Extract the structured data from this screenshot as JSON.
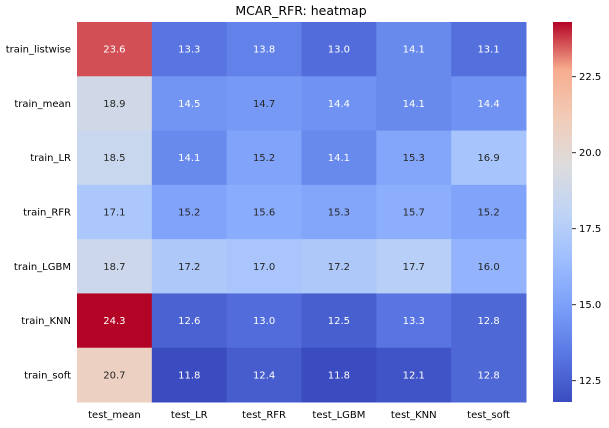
{
  "chart_data": {
    "type": "heatmap",
    "title": "MCAR_RFR: heatmap",
    "rows": [
      "train_listwise",
      "train_mean",
      "train_LR",
      "train_RFR",
      "train_LGBM",
      "train_KNN",
      "train_soft"
    ],
    "columns": [
      "test_mean",
      "test_LR",
      "test_RFR",
      "test_LGBM",
      "test_KNN",
      "test_soft"
    ],
    "values": [
      [
        23.6,
        13.3,
        13.8,
        13.0,
        14.1,
        13.1
      ],
      [
        18.9,
        14.5,
        14.7,
        14.4,
        14.1,
        14.4
      ],
      [
        18.5,
        14.1,
        15.2,
        14.1,
        15.3,
        16.9
      ],
      [
        17.1,
        15.2,
        15.6,
        15.3,
        15.7,
        15.2
      ],
      [
        18.7,
        17.2,
        17.0,
        17.2,
        17.7,
        16.0
      ],
      [
        24.3,
        12.6,
        13.0,
        12.5,
        13.3,
        12.8
      ],
      [
        20.7,
        11.8,
        12.4,
        11.8,
        12.1,
        12.8
      ]
    ],
    "colormap": "coolwarm",
    "vmin": 11.8,
    "vmax": 24.3,
    "colorbar_ticks": [
      "12.5",
      "15.0",
      "17.5",
      "20.0",
      "22.5"
    ],
    "xlabel": "",
    "ylabel": ""
  }
}
